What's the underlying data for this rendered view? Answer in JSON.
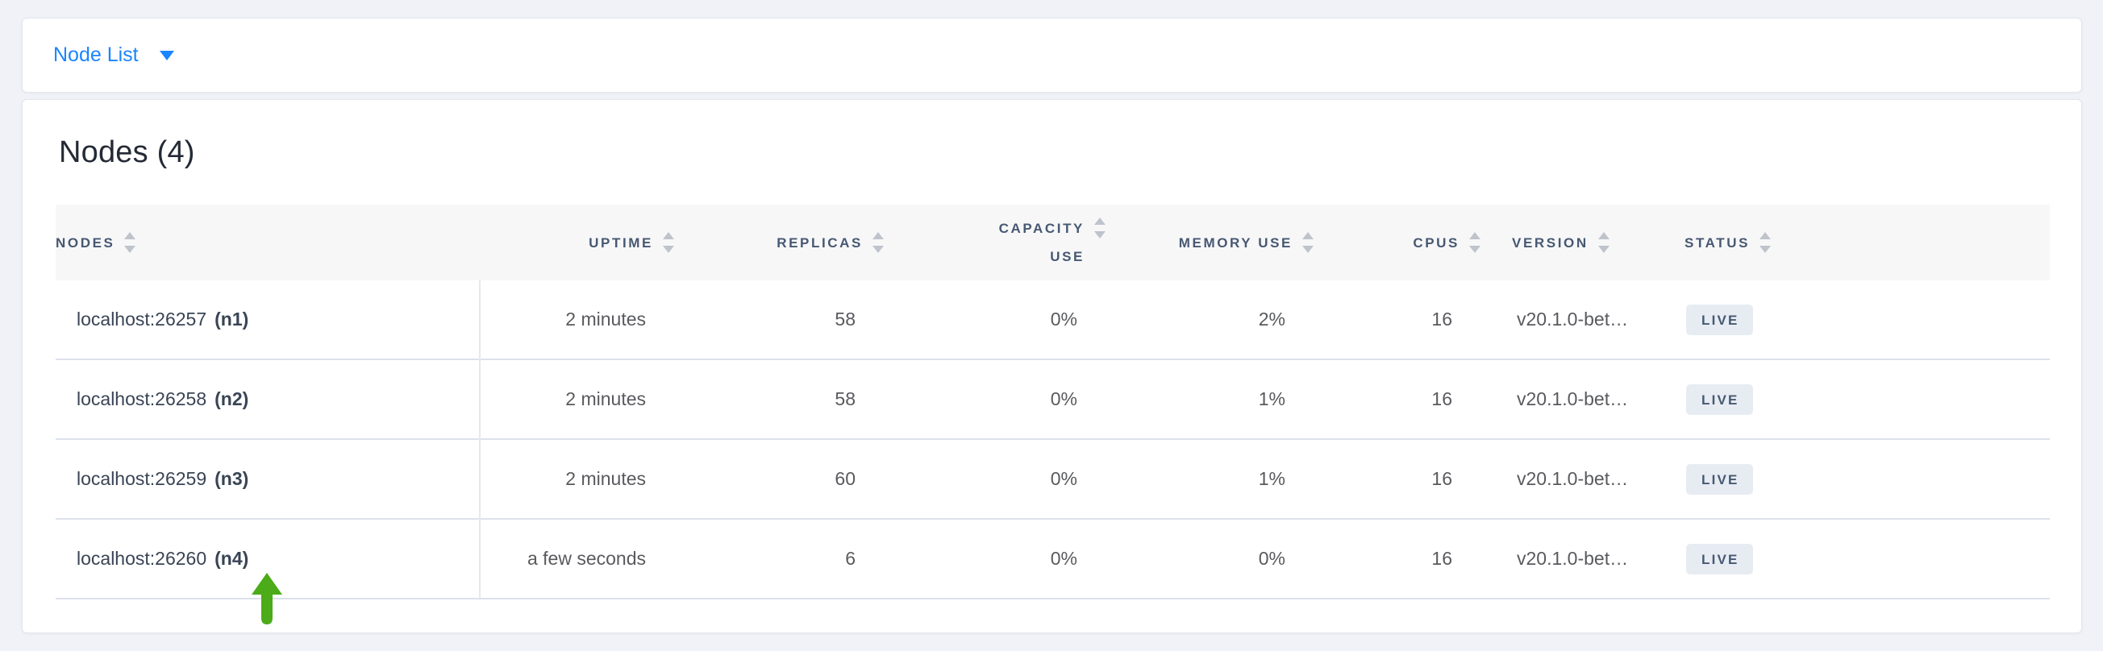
{
  "colors": {
    "accent_blue": "#1A85FF",
    "arrow_green": "#4BAB18",
    "badge_bg": "#E7ECF3",
    "badge_text": "#475872",
    "header_text": "#475872",
    "page_background": "#F0F2F7"
  },
  "topbar": {
    "dropdown_label": "Node List",
    "caret_icon": "caret-down"
  },
  "main": {
    "heading": "Nodes (4)",
    "table": {
      "columns": [
        {
          "key": "nodes",
          "label": "NODES",
          "align": "left",
          "wrap": false
        },
        {
          "key": "uptime",
          "label": "UPTIME",
          "align": "right",
          "wrap": false
        },
        {
          "key": "replicas",
          "label": "REPLICAS",
          "align": "right",
          "wrap": false
        },
        {
          "key": "capacity_use",
          "label": "CAPACITY USE",
          "align": "right",
          "wrap": true
        },
        {
          "key": "memory_use",
          "label": "MEMORY USE",
          "align": "right",
          "wrap": false
        },
        {
          "key": "cpus",
          "label": "CPUS",
          "align": "right",
          "wrap": false
        },
        {
          "key": "version",
          "label": "VERSION",
          "align": "left",
          "wrap": false
        },
        {
          "key": "status",
          "label": "STATUS",
          "align": "left",
          "wrap": false
        }
      ],
      "rows": [
        {
          "host": "localhost:26257",
          "node_id": "(n1)",
          "uptime": "2 minutes",
          "replicas": "58",
          "capacity_use": "0%",
          "memory_use": "2%",
          "cpus": "16",
          "version": "v20.1.0-bet…",
          "status": "LIVE"
        },
        {
          "host": "localhost:26258",
          "node_id": "(n2)",
          "uptime": "2 minutes",
          "replicas": "58",
          "capacity_use": "0%",
          "memory_use": "1%",
          "cpus": "16",
          "version": "v20.1.0-bet…",
          "status": "LIVE"
        },
        {
          "host": "localhost:26259",
          "node_id": "(n3)",
          "uptime": "2 minutes",
          "replicas": "60",
          "capacity_use": "0%",
          "memory_use": "1%",
          "cpus": "16",
          "version": "v20.1.0-bet…",
          "status": "LIVE"
        },
        {
          "host": "localhost:26260",
          "node_id": "(n4)",
          "uptime": "a few seconds",
          "replicas": "6",
          "capacity_use": "0%",
          "memory_use": "0%",
          "cpus": "16",
          "version": "v20.1.0-bet…",
          "status": "LIVE"
        }
      ],
      "annotation": {
        "icon": "arrow-up",
        "points_at": "(n4)"
      }
    }
  }
}
